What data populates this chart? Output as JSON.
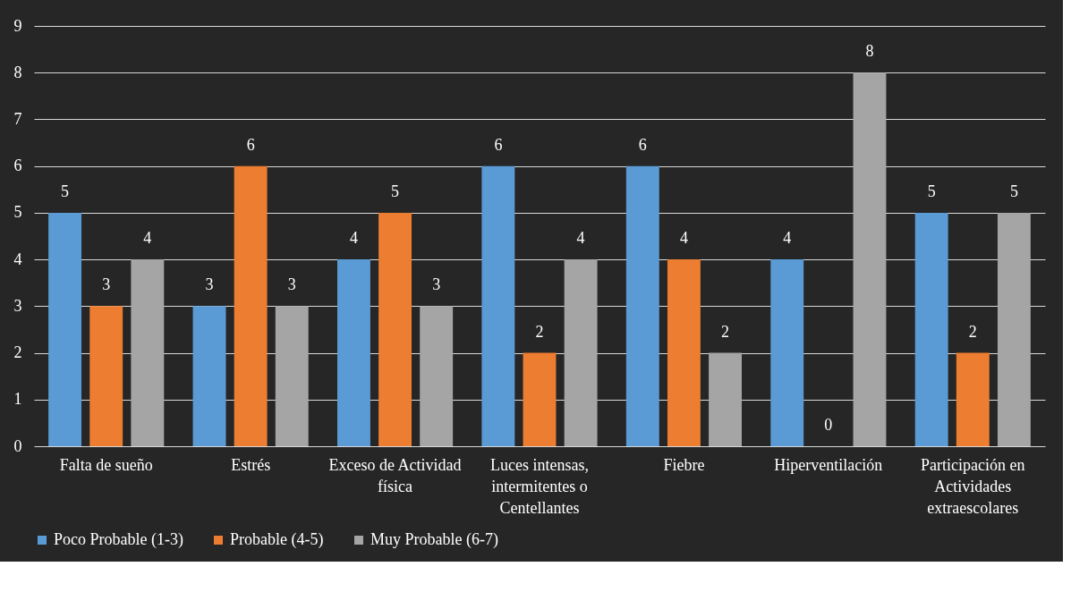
{
  "chart_data": {
    "type": "bar",
    "categories": [
      "Falta de sueño",
      "Estrés",
      "Exceso de Actividad física",
      "Luces intensas, intermitentes o Centellantes",
      "Fiebre",
      "Hiperventilación",
      "Participación en Actividades extraescolares"
    ],
    "series": [
      {
        "name": "Poco Probable (1-3)",
        "color": "#5b9bd5",
        "values": [
          5,
          3,
          4,
          6,
          6,
          4,
          5
        ]
      },
      {
        "name": "Probable (4-5)",
        "color": "#ed7d31",
        "values": [
          3,
          6,
          5,
          2,
          4,
          0,
          2
        ]
      },
      {
        "name": "Muy Probable (6-7)",
        "color": "#a5a5a5",
        "values": [
          4,
          3,
          3,
          4,
          2,
          8,
          5
        ]
      }
    ],
    "ylim": [
      0,
      9
    ],
    "yticks": [
      0,
      1,
      2,
      3,
      4,
      5,
      6,
      7,
      8,
      9
    ],
    "grid": "y",
    "legend": "bottom",
    "data_labels": true
  }
}
